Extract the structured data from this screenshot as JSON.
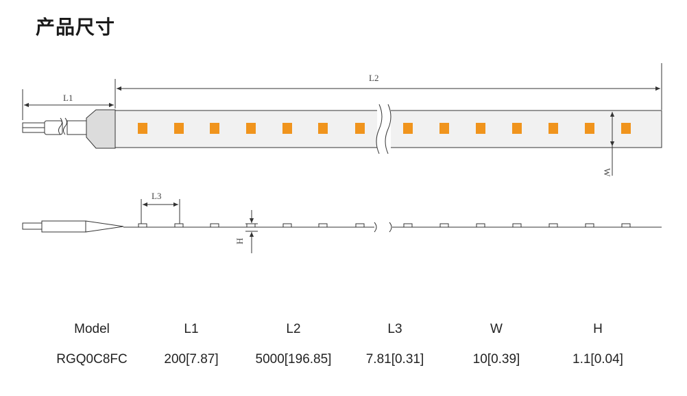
{
  "page": {
    "title": "产品尺寸"
  },
  "diagram": {
    "labels": {
      "l1": "L1",
      "l2": "L2",
      "l3": "L3",
      "w": "W",
      "h": "H"
    },
    "led_color": "#f0941d",
    "strip_color": "#f0f0f0",
    "line_color": "#3a3a3a"
  },
  "specs": {
    "headers": [
      "Model",
      "L1",
      "L2",
      "L3",
      "W",
      "H"
    ],
    "row": [
      "RGQ0C8FC",
      "200[7.87]",
      "5000[196.85]",
      "7.81[0.31]",
      "10[0.39]",
      "1.1[0.04]"
    ]
  }
}
